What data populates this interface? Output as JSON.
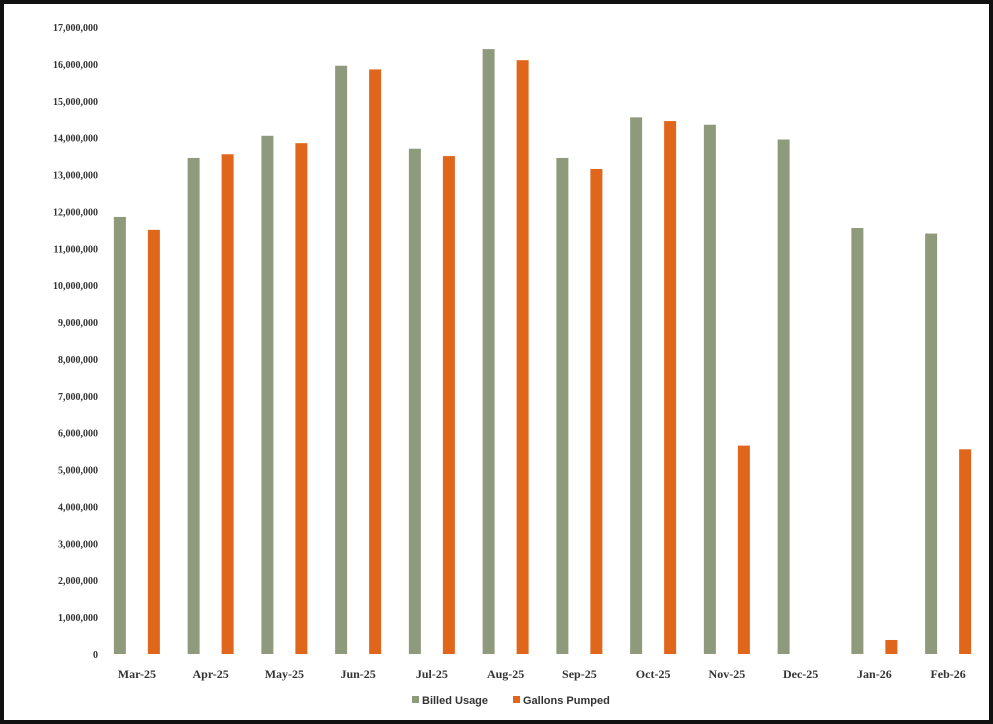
{
  "chart_data": {
    "type": "bar",
    "categories": [
      "Mar-25",
      "Apr-25",
      "May-25",
      "Jun-25",
      "Jul-25",
      "Aug-25",
      "Sep-25",
      "Oct-25",
      "Nov-25",
      "Dec-25",
      "Jan-26",
      "Feb-26"
    ],
    "series": [
      {
        "name": "Billed Usage",
        "color": "#8f9a7c",
        "values": [
          11850000,
          13450000,
          14050000,
          15950000,
          13700000,
          16400000,
          13450000,
          14550000,
          14350000,
          13950000,
          11550000,
          11400000
        ]
      },
      {
        "name": "Gallons Pumped",
        "color": "#e0661c",
        "values": [
          11500000,
          13550000,
          13850000,
          15850000,
          13500000,
          16100000,
          13150000,
          14450000,
          5650000,
          0,
          380000,
          5550000
        ]
      }
    ],
    "ylim": [
      0,
      17000000
    ],
    "ytick_step": 1000000,
    "yticks": [
      "0",
      "1,000,000",
      "2,000,000",
      "3,000,000",
      "4,000,000",
      "5,000,000",
      "6,000,000",
      "7,000,000",
      "8,000,000",
      "9,000,000",
      "10,000,000",
      "11,000,000",
      "12,000,000",
      "13,000,000",
      "14,000,000",
      "15,000,000",
      "16,000,000",
      "17,000,000"
    ],
    "grid": false,
    "legend": {
      "position": "bottom",
      "entries": [
        "Billed Usage",
        "Gallons Pumped"
      ]
    }
  }
}
